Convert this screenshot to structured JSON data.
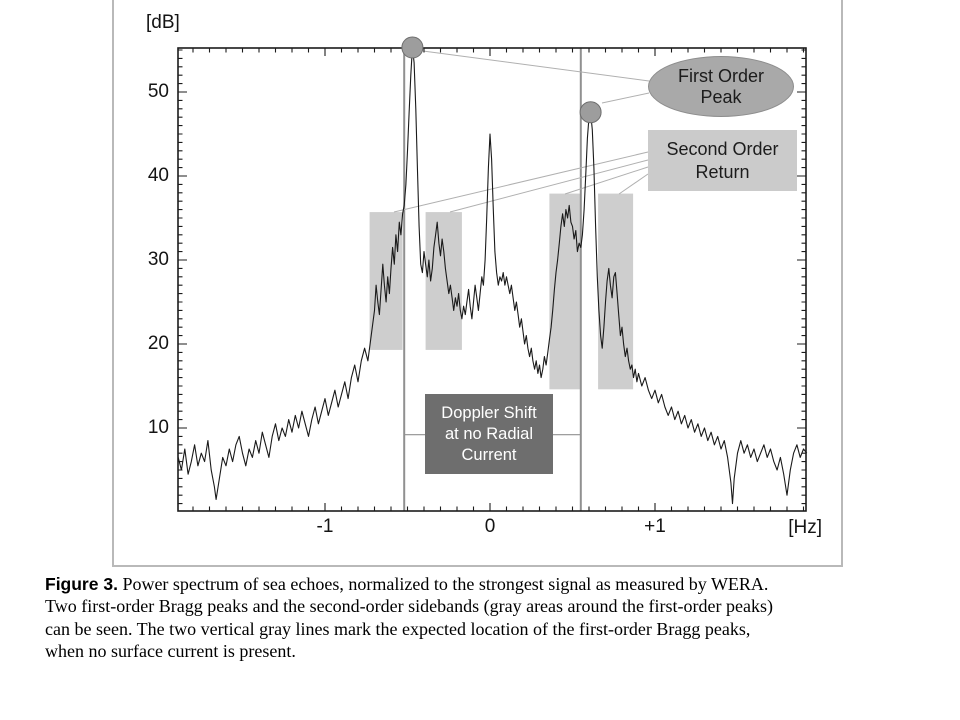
{
  "figure": {
    "y_axis": {
      "unit": "[dB]",
      "tick_labels": [
        "50",
        "40",
        "30",
        "20",
        "10"
      ],
      "tick_values": [
        50,
        40,
        30,
        20,
        10
      ]
    },
    "x_axis": {
      "unit": "[Hz]",
      "tick_labels": [
        "-1",
        "0",
        "+1"
      ],
      "tick_values": [
        -1,
        0,
        1
      ]
    },
    "callouts": {
      "first_order_peak": {
        "lines": [
          "First Order",
          "Peak"
        ]
      },
      "second_order_return": {
        "lines": [
          "Second Order",
          "Return"
        ]
      },
      "doppler_shift": {
        "lines": [
          "Doppler Shift",
          "at no Radial",
          "Current"
        ]
      }
    },
    "colors": {
      "band_fill": "#cecece",
      "reference_line": "#909090",
      "spectrum_line": "#1a1a1a",
      "axis": "#1c1c1c",
      "callout_line": "#b0b0b0",
      "marker_fill": "#9d9d9d",
      "marker_edge": "#6e6e6e",
      "ellipse_fill": "#a9a9a9",
      "ellipse_edge": "#8d8d8d",
      "label_box_fill": "#cbcbcb",
      "doppler_box_fill": "#6e6e6e",
      "doppler_text": "#ffffff",
      "frame_border": "#b9b9b9"
    }
  },
  "caption": {
    "label": "Figure 3.",
    "lines": [
      " Power spectrum of sea echoes, normalized to the strongest signal as measured by WERA.",
      "Two first-order Bragg peaks and the second-order sidebands (gray areas around the first-order peaks)",
      "can be seen. The two vertical gray lines mark the expected location of the first-order Bragg peaks,",
      "when no surface current is present."
    ]
  },
  "chart_data": {
    "type": "line",
    "title": "Power spectrum of sea echoes, normalized to the strongest signal (WERA radar)",
    "xlabel": "[Hz]",
    "ylabel": "[dB]",
    "xlim": [
      -1.9,
      1.92
    ],
    "ylim": [
      0,
      55.2
    ],
    "x_ticks": [
      -1,
      0,
      1
    ],
    "y_ticks": [
      10,
      20,
      30,
      40,
      50
    ],
    "grid": false,
    "legend": "none",
    "bragg_expected_lines_hz": [
      -0.52,
      0.55
    ],
    "doppler_reference_db": 9.2,
    "second_order_bands": [
      {
        "from_hz": -0.73,
        "to_hz": -0.53,
        "top_db": 35.7,
        "bottom_db": 19.3
      },
      {
        "from_hz": -0.39,
        "to_hz": -0.17,
        "top_db": 35.7,
        "bottom_db": 19.3
      },
      {
        "from_hz": 0.36,
        "to_hz": 0.55,
        "top_db": 37.9,
        "bottom_db": 14.6
      },
      {
        "from_hz": 0.655,
        "to_hz": 0.867,
        "top_db": 37.9,
        "bottom_db": 14.6
      }
    ],
    "peak_markers": [
      {
        "hz": -0.47,
        "db": 55.3,
        "label": "first-order Bragg peak (negative Doppler)"
      },
      {
        "hz": 0.61,
        "db": 47.6,
        "label": "first-order Bragg peak (positive Doppler)"
      }
    ],
    "series": [
      {
        "name": "sea echo power spectrum",
        "points": [
          [
            -1.89,
            6.5
          ],
          [
            -1.87,
            5
          ],
          [
            -1.85,
            7.5
          ],
          [
            -1.83,
            4.5
          ],
          [
            -1.81,
            6
          ],
          [
            -1.79,
            8
          ],
          [
            -1.77,
            5.5
          ],
          [
            -1.75,
            7
          ],
          [
            -1.73,
            6
          ],
          [
            -1.71,
            8.5
          ],
          [
            -1.69,
            5
          ],
          [
            -1.67,
            3
          ],
          [
            -1.66,
            1.5
          ],
          [
            -1.64,
            4
          ],
          [
            -1.62,
            6.5
          ],
          [
            -1.6,
            5.5
          ],
          [
            -1.58,
            7.5
          ],
          [
            -1.56,
            6
          ],
          [
            -1.54,
            8
          ],
          [
            -1.52,
            9
          ],
          [
            -1.5,
            7
          ],
          [
            -1.48,
            5.5
          ],
          [
            -1.46,
            7.5
          ],
          [
            -1.44,
            6.5
          ],
          [
            -1.42,
            8.5
          ],
          [
            -1.4,
            7
          ],
          [
            -1.38,
            9.5
          ],
          [
            -1.36,
            8
          ],
          [
            -1.34,
            6.5
          ],
          [
            -1.32,
            9
          ],
          [
            -1.3,
            10.5
          ],
          [
            -1.28,
            8.5
          ],
          [
            -1.26,
            10
          ],
          [
            -1.24,
            9
          ],
          [
            -1.22,
            11
          ],
          [
            -1.2,
            9.5
          ],
          [
            -1.18,
            11.5
          ],
          [
            -1.16,
            10
          ],
          [
            -1.14,
            12
          ],
          [
            -1.12,
            10.5
          ],
          [
            -1.1,
            9
          ],
          [
            -1.08,
            11
          ],
          [
            -1.06,
            12.5
          ],
          [
            -1.04,
            10.5
          ],
          [
            -1.02,
            12
          ],
          [
            -1,
            13.5
          ],
          [
            -0.98,
            11.5
          ],
          [
            -0.96,
            13
          ],
          [
            -0.94,
            14.5
          ],
          [
            -0.92,
            12.5
          ],
          [
            -0.9,
            14
          ],
          [
            -0.88,
            15.5
          ],
          [
            -0.86,
            13.5
          ],
          [
            -0.84,
            16
          ],
          [
            -0.82,
            17.5
          ],
          [
            -0.8,
            15.5
          ],
          [
            -0.78,
            18
          ],
          [
            -0.76,
            19.5
          ],
          [
            -0.74,
            18
          ],
          [
            -0.72,
            21
          ],
          [
            -0.7,
            24
          ],
          [
            -0.69,
            27
          ],
          [
            -0.68,
            25
          ],
          [
            -0.67,
            23.5
          ],
          [
            -0.66,
            26.5
          ],
          [
            -0.65,
            29.5
          ],
          [
            -0.64,
            27
          ],
          [
            -0.63,
            25
          ],
          [
            -0.62,
            28
          ],
          [
            -0.61,
            26
          ],
          [
            -0.6,
            29
          ],
          [
            -0.59,
            31.5
          ],
          [
            -0.58,
            29.5
          ],
          [
            -0.57,
            33
          ],
          [
            -0.56,
            31
          ],
          [
            -0.55,
            34.5
          ],
          [
            -0.54,
            33
          ],
          [
            -0.53,
            35.5
          ],
          [
            -0.52,
            36.5
          ],
          [
            -0.51,
            39
          ],
          [
            -0.5,
            43
          ],
          [
            -0.49,
            47.5
          ],
          [
            -0.48,
            52
          ],
          [
            -0.47,
            55.3
          ],
          [
            -0.46,
            53.5
          ],
          [
            -0.45,
            48
          ],
          [
            -0.44,
            41
          ],
          [
            -0.43,
            34
          ],
          [
            -0.42,
            29.5
          ],
          [
            -0.41,
            28.5
          ],
          [
            -0.4,
            31
          ],
          [
            -0.39,
            29.5
          ],
          [
            -0.38,
            28
          ],
          [
            -0.37,
            30
          ],
          [
            -0.36,
            27.5
          ],
          [
            -0.35,
            29
          ],
          [
            -0.34,
            31.5
          ],
          [
            -0.33,
            33
          ],
          [
            -0.32,
            34.5
          ],
          [
            -0.31,
            32
          ],
          [
            -0.3,
            30.5
          ],
          [
            -0.29,
            32.5
          ],
          [
            -0.28,
            31
          ],
          [
            -0.27,
            29
          ],
          [
            -0.26,
            27.5
          ],
          [
            -0.25,
            26
          ],
          [
            -0.24,
            27
          ],
          [
            -0.23,
            25.5
          ],
          [
            -0.22,
            24
          ],
          [
            -0.21,
            25.5
          ],
          [
            -0.2,
            24.5
          ],
          [
            -0.19,
            26
          ],
          [
            -0.18,
            24
          ],
          [
            -0.17,
            23
          ],
          [
            -0.16,
            24.5
          ],
          [
            -0.15,
            23.5
          ],
          [
            -0.14,
            25
          ],
          [
            -0.13,
            26.5
          ],
          [
            -0.12,
            24.5
          ],
          [
            -0.11,
            23
          ],
          [
            -0.1,
            25
          ],
          [
            -0.09,
            27
          ],
          [
            -0.08,
            25.5
          ],
          [
            -0.07,
            24
          ],
          [
            -0.06,
            26
          ],
          [
            -0.05,
            28
          ],
          [
            -0.04,
            27
          ],
          [
            -0.03,
            30
          ],
          [
            -0.02,
            35
          ],
          [
            -0.01,
            41
          ],
          [
            0,
            45
          ],
          [
            0.01,
            42
          ],
          [
            0.02,
            36
          ],
          [
            0.03,
            31
          ],
          [
            0.04,
            28.5
          ],
          [
            0.05,
            27
          ],
          [
            0.06,
            28
          ],
          [
            0.07,
            27.5
          ],
          [
            0.08,
            28.5
          ],
          [
            0.09,
            27
          ],
          [
            0.1,
            28
          ],
          [
            0.11,
            27
          ],
          [
            0.12,
            26
          ],
          [
            0.13,
            27
          ],
          [
            0.14,
            25.5
          ],
          [
            0.15,
            24
          ],
          [
            0.16,
            25
          ],
          [
            0.17,
            23.5
          ],
          [
            0.18,
            22
          ],
          [
            0.19,
            23
          ],
          [
            0.2,
            21.5
          ],
          [
            0.21,
            20
          ],
          [
            0.22,
            21
          ],
          [
            0.23,
            19.5
          ],
          [
            0.24,
            18.5
          ],
          [
            0.25,
            19.5
          ],
          [
            0.26,
            18
          ],
          [
            0.27,
            17
          ],
          [
            0.28,
            18
          ],
          [
            0.29,
            16.5
          ],
          [
            0.3,
            17.5
          ],
          [
            0.31,
            16
          ],
          [
            0.32,
            17
          ],
          [
            0.33,
            18.5
          ],
          [
            0.34,
            17.5
          ],
          [
            0.35,
            19
          ],
          [
            0.36,
            20.5
          ],
          [
            0.37,
            22
          ],
          [
            0.38,
            24
          ],
          [
            0.39,
            26.5
          ],
          [
            0.4,
            28.5
          ],
          [
            0.41,
            30
          ],
          [
            0.42,
            32
          ],
          [
            0.43,
            34
          ],
          [
            0.44,
            35.5
          ],
          [
            0.45,
            34
          ],
          [
            0.46,
            36
          ],
          [
            0.47,
            35
          ],
          [
            0.48,
            36.5
          ],
          [
            0.49,
            34.5
          ],
          [
            0.5,
            34
          ],
          [
            0.51,
            32.5
          ],
          [
            0.52,
            33.5
          ],
          [
            0.53,
            31
          ],
          [
            0.54,
            32
          ],
          [
            0.55,
            31.5
          ],
          [
            0.56,
            33
          ],
          [
            0.57,
            36
          ],
          [
            0.58,
            40
          ],
          [
            0.59,
            44.5
          ],
          [
            0.6,
            47
          ],
          [
            0.61,
            47.6
          ],
          [
            0.62,
            45.5
          ],
          [
            0.63,
            41
          ],
          [
            0.64,
            34
          ],
          [
            0.65,
            28
          ],
          [
            0.66,
            24
          ],
          [
            0.67,
            21
          ],
          [
            0.68,
            19.5
          ],
          [
            0.69,
            22
          ],
          [
            0.7,
            25
          ],
          [
            0.71,
            27.5
          ],
          [
            0.72,
            29
          ],
          [
            0.73,
            27
          ],
          [
            0.74,
            25.5
          ],
          [
            0.75,
            28
          ],
          [
            0.76,
            28.5
          ],
          [
            0.77,
            26
          ],
          [
            0.78,
            23.5
          ],
          [
            0.79,
            21
          ],
          [
            0.8,
            22
          ],
          [
            0.81,
            20
          ],
          [
            0.82,
            18.5
          ],
          [
            0.83,
            19.5
          ],
          [
            0.84,
            18
          ],
          [
            0.85,
            17
          ],
          [
            0.86,
            17.5
          ],
          [
            0.87,
            16
          ],
          [
            0.88,
            17
          ],
          [
            0.89,
            15.5
          ],
          [
            0.9,
            16.5
          ],
          [
            0.92,
            15
          ],
          [
            0.94,
            16
          ],
          [
            0.96,
            14.5
          ],
          [
            0.98,
            13.5
          ],
          [
            1,
            14.5
          ],
          [
            1.02,
            13
          ],
          [
            1.04,
            14
          ],
          [
            1.06,
            12.5
          ],
          [
            1.08,
            11.5
          ],
          [
            1.1,
            12.5
          ],
          [
            1.12,
            11
          ],
          [
            1.14,
            12
          ],
          [
            1.16,
            10.5
          ],
          [
            1.18,
            11.5
          ],
          [
            1.2,
            10
          ],
          [
            1.22,
            11
          ],
          [
            1.24,
            9.5
          ],
          [
            1.26,
            10.5
          ],
          [
            1.28,
            9
          ],
          [
            1.3,
            10
          ],
          [
            1.32,
            8.5
          ],
          [
            1.34,
            9.5
          ],
          [
            1.36,
            8
          ],
          [
            1.38,
            9
          ],
          [
            1.4,
            7.5
          ],
          [
            1.42,
            8.5
          ],
          [
            1.44,
            6.5
          ],
          [
            1.46,
            3.5
          ],
          [
            1.47,
            1
          ],
          [
            1.48,
            4
          ],
          [
            1.5,
            7
          ],
          [
            1.52,
            8.5
          ],
          [
            1.54,
            7
          ],
          [
            1.56,
            8
          ],
          [
            1.58,
            6.5
          ],
          [
            1.6,
            7.5
          ],
          [
            1.62,
            6
          ],
          [
            1.64,
            7
          ],
          [
            1.66,
            8
          ],
          [
            1.68,
            6.5
          ],
          [
            1.7,
            7.5
          ],
          [
            1.72,
            6
          ],
          [
            1.74,
            5
          ],
          [
            1.76,
            6.5
          ],
          [
            1.78,
            4.5
          ],
          [
            1.8,
            2
          ],
          [
            1.82,
            5
          ],
          [
            1.84,
            7
          ],
          [
            1.86,
            8
          ],
          [
            1.88,
            6.5
          ],
          [
            1.9,
            7.5
          ],
          [
            1.92,
            7
          ]
        ]
      }
    ]
  }
}
